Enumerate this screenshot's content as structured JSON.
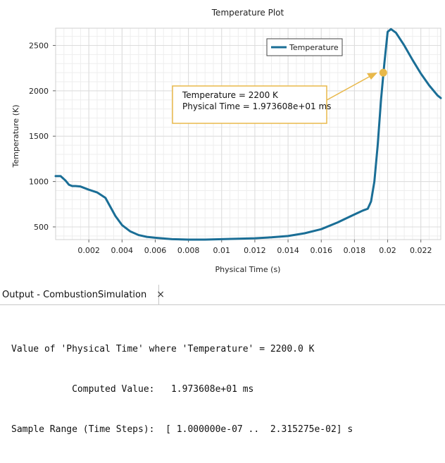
{
  "chart_data": {
    "type": "line",
    "title": "Temperature Plot",
    "xlabel": "Physical Time (s)",
    "ylabel": "Temperature (K)",
    "xlim": [
      0,
      0.0232
    ],
    "ylim": [
      360,
      2690
    ],
    "xticks": [
      0.002,
      0.004,
      0.006,
      0.008,
      0.01,
      0.012,
      0.014,
      0.016,
      0.018,
      0.02,
      0.022
    ],
    "xtick_labels": [
      "0.002",
      "0.004",
      "0.006",
      "0.008",
      "0.01",
      "0.012",
      "0.014",
      "0.016",
      "0.018",
      "0.02",
      "0.022"
    ],
    "yticks": [
      500,
      1000,
      1500,
      2000,
      2500
    ],
    "ytick_labels": [
      "500",
      "1000",
      "1500",
      "2000",
      "2500"
    ],
    "grid": true,
    "legend_position": "top-right",
    "series": [
      {
        "name": "Temperature",
        "color": "#1a6e96",
        "x": [
          0.0,
          0.0003,
          0.0006,
          0.0008,
          0.001,
          0.0012,
          0.0015,
          0.002,
          0.0025,
          0.003,
          0.0033,
          0.0036,
          0.004,
          0.0045,
          0.005,
          0.0055,
          0.006,
          0.007,
          0.008,
          0.009,
          0.01,
          0.011,
          0.012,
          0.013,
          0.014,
          0.015,
          0.016,
          0.017,
          0.0178,
          0.0185,
          0.0188,
          0.019,
          0.0192,
          0.0194,
          0.0196,
          0.0198,
          0.02,
          0.0202,
          0.0205,
          0.021,
          0.0215,
          0.022,
          0.0225,
          0.023,
          0.0232
        ],
        "y": [
          1060,
          1060,
          1010,
          965,
          950,
          950,
          945,
          910,
          880,
          820,
          720,
          620,
          520,
          450,
          410,
          390,
          380,
          365,
          360,
          360,
          365,
          370,
          375,
          385,
          400,
          430,
          475,
          550,
          620,
          680,
          700,
          780,
          1000,
          1400,
          1900,
          2300,
          2650,
          2680,
          2640,
          2500,
          2340,
          2190,
          2060,
          1950,
          1920
        ]
      }
    ],
    "annotation": {
      "x": 0.01973608,
      "y": 2200,
      "marker_color": "#e8b84a",
      "lines": [
        "Temperature = 2200 K",
        "Physical Time = 1.973608e+01 ms"
      ]
    }
  },
  "output_panel": {
    "tab_label": "Output - CombustionSimulation",
    "close_icon": "×",
    "console_lines": [
      "Value of 'Physical Time' where 'Temperature' = 2200.0 K",
      "           Computed Value:   1.973608e+01 ms",
      "Sample Range (Time Steps):  [ 1.000000e-07 ..  2.315275e-02] s"
    ]
  }
}
